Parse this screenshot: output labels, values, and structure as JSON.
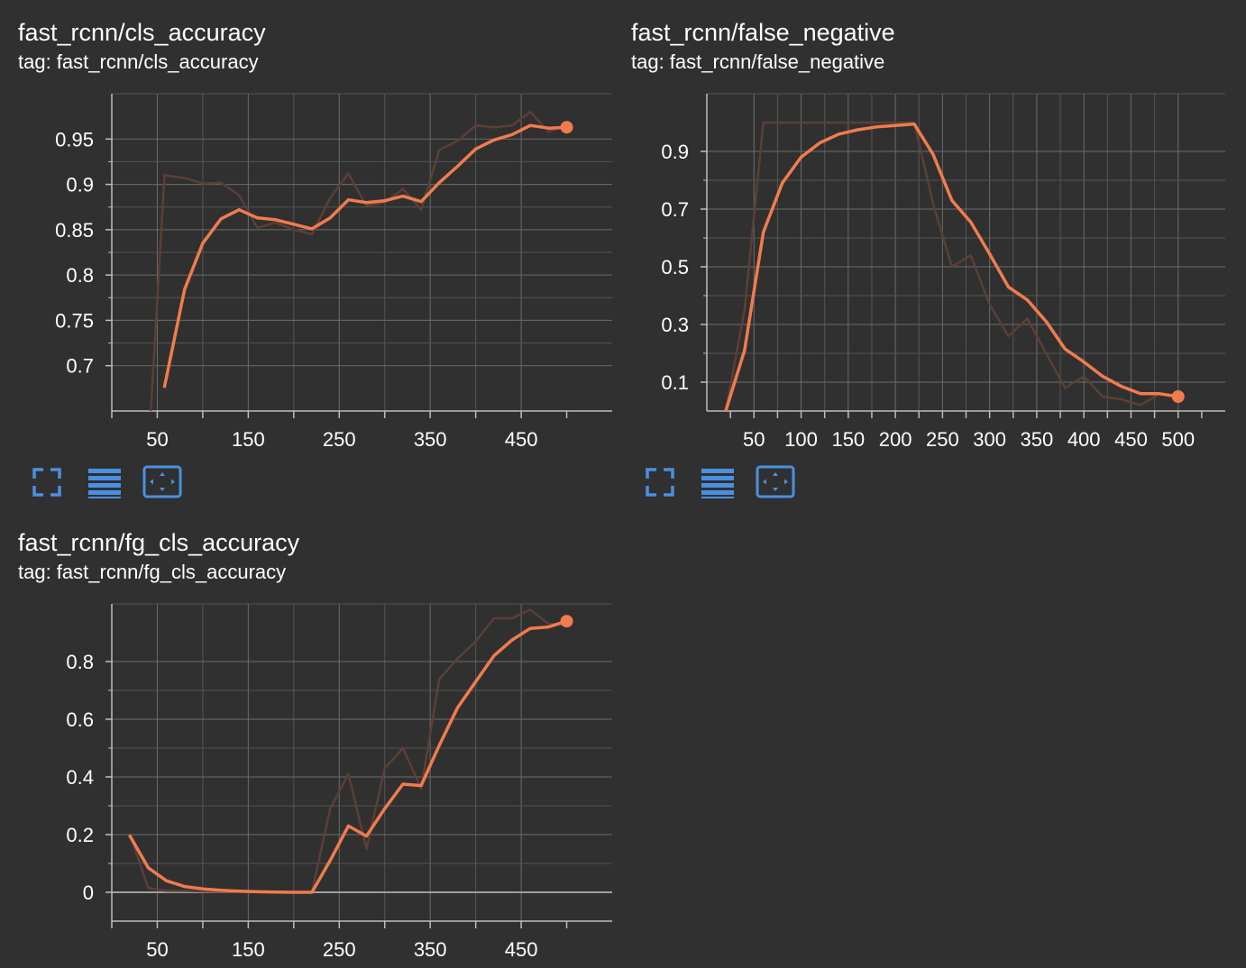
{
  "theme": {
    "background": "#303030",
    "accent": "#f07c4e",
    "raw_series_color": "#5b3f37",
    "grid_color": "#6b6b6b",
    "icon_color": "#4a90e2"
  },
  "toolbar_icons": [
    "fullscreen-icon",
    "data-table-icon",
    "fit-domain-icon"
  ],
  "cards": [
    {
      "title": "fast_rcnn/cls_accuracy",
      "tag": "tag: fast_rcnn/cls_accuracy",
      "show_toolbar": true
    },
    {
      "title": "fast_rcnn/false_negative",
      "tag": "tag: fast_rcnn/false_negative",
      "show_toolbar": true
    },
    {
      "title": "fast_rcnn/fg_cls_accuracy",
      "tag": "tag: fast_rcnn/fg_cls_accuracy",
      "show_toolbar": false
    }
  ],
  "chart_data": [
    {
      "type": "line",
      "title": "fast_rcnn/cls_accuracy",
      "xlim": [
        0,
        550
      ],
      "ylim": [
        0.65,
        1.0
      ],
      "xticks": [
        50,
        150,
        250,
        350,
        450
      ],
      "xtick_labels": [
        "50",
        "150",
        "250",
        "350",
        "450"
      ],
      "yticks": [
        0.7,
        0.75,
        0.8,
        0.85,
        0.9,
        0.95
      ],
      "ytick_labels": [
        "0.7",
        "0.75",
        "0.8",
        "0.85",
        "0.9",
        "0.95"
      ],
      "grid": true,
      "series": [
        {
          "role": "raw",
          "x": [
            40,
            58,
            80,
            100,
            120,
            140,
            160,
            180,
            200,
            220,
            240,
            260,
            280,
            300,
            320,
            340,
            360,
            380,
            400,
            420,
            440,
            460,
            480,
            500
          ],
          "y": [
            0.6,
            0.91,
            0.907,
            0.901,
            0.902,
            0.888,
            0.852,
            0.858,
            0.85,
            0.845,
            0.885,
            0.912,
            0.876,
            0.88,
            0.895,
            0.872,
            0.938,
            0.948,
            0.965,
            0.963,
            0.965,
            0.98,
            0.958,
            0.965
          ]
        },
        {
          "role": "smoothed",
          "x": [
            58,
            80,
            100,
            120,
            140,
            160,
            180,
            200,
            220,
            240,
            260,
            280,
            300,
            320,
            340,
            360,
            380,
            400,
            420,
            440,
            460,
            480,
            500
          ],
          "y": [
            0.677,
            0.784,
            0.835,
            0.862,
            0.872,
            0.863,
            0.861,
            0.856,
            0.851,
            0.863,
            0.883,
            0.88,
            0.882,
            0.887,
            0.881,
            0.902,
            0.92,
            0.939,
            0.949,
            0.955,
            0.965,
            0.962,
            0.963
          ]
        }
      ]
    },
    {
      "type": "line",
      "title": "fast_rcnn/false_negative",
      "xlim": [
        0,
        550
      ],
      "ylim": [
        0.0,
        1.1
      ],
      "xticks": [
        50,
        100,
        150,
        200,
        250,
        300,
        350,
        400,
        450,
        500
      ],
      "xtick_labels": [
        "50",
        "100",
        "150",
        "200",
        "250",
        "300",
        "350",
        "400",
        "450",
        "500"
      ],
      "yticks": [
        0.1,
        0.3,
        0.5,
        0.7,
        0.9
      ],
      "ytick_labels": [
        "0.1",
        "0.3",
        "0.5",
        "0.7",
        "0.9"
      ],
      "grid": true,
      "series": [
        {
          "role": "raw",
          "x": [
            20,
            40,
            60,
            80,
            100,
            120,
            140,
            160,
            180,
            200,
            220,
            240,
            260,
            280,
            300,
            320,
            340,
            360,
            380,
            400,
            420,
            440,
            460,
            480,
            500
          ],
          "y": [
            0.0,
            0.35,
            1.0,
            1.0,
            1.0,
            1.0,
            1.0,
            1.0,
            1.0,
            1.0,
            1.0,
            0.72,
            0.5,
            0.54,
            0.37,
            0.26,
            0.32,
            0.2,
            0.08,
            0.12,
            0.05,
            0.04,
            0.02,
            0.06,
            0.05
          ]
        },
        {
          "role": "smoothed",
          "x": [
            20,
            40,
            60,
            80,
            100,
            120,
            140,
            160,
            180,
            200,
            220,
            240,
            260,
            280,
            300,
            320,
            340,
            360,
            380,
            400,
            420,
            440,
            460,
            480,
            500
          ],
          "y": [
            0.0,
            0.21,
            0.62,
            0.79,
            0.88,
            0.93,
            0.96,
            0.975,
            0.985,
            0.99,
            0.995,
            0.89,
            0.73,
            0.655,
            0.545,
            0.43,
            0.385,
            0.31,
            0.215,
            0.17,
            0.12,
            0.085,
            0.06,
            0.06,
            0.05
          ]
        }
      ]
    },
    {
      "type": "line",
      "title": "fast_rcnn/fg_cls_accuracy",
      "xlim": [
        0,
        550
      ],
      "ylim": [
        -0.1,
        1.0
      ],
      "xticks": [
        50,
        150,
        250,
        350,
        450
      ],
      "xtick_labels": [
        "50",
        "150",
        "250",
        "350",
        "450"
      ],
      "yticks": [
        0,
        0.2,
        0.4,
        0.6,
        0.8
      ],
      "ytick_labels": [
        "0",
        "0.2",
        "0.4",
        "0.6",
        "0.8"
      ],
      "grid": true,
      "series": [
        {
          "role": "raw",
          "x": [
            20,
            40,
            60,
            80,
            100,
            120,
            140,
            160,
            180,
            200,
            220,
            240,
            260,
            270,
            280,
            300,
            320,
            340,
            360,
            380,
            400,
            420,
            440,
            460,
            480,
            500
          ],
          "y": [
            0.2,
            0.015,
            0.005,
            0.005,
            0.003,
            0.002,
            0.001,
            0.001,
            0.0,
            0.0,
            0.0,
            0.29,
            0.41,
            0.28,
            0.15,
            0.43,
            0.5,
            0.36,
            0.74,
            0.81,
            0.87,
            0.95,
            0.95,
            0.98,
            0.93,
            0.93
          ]
        },
        {
          "role": "smoothed",
          "x": [
            20,
            40,
            60,
            80,
            100,
            120,
            140,
            160,
            180,
            200,
            220,
            240,
            260,
            280,
            300,
            320,
            340,
            360,
            380,
            400,
            420,
            440,
            460,
            480,
            500
          ],
          "y": [
            0.195,
            0.085,
            0.04,
            0.02,
            0.012,
            0.007,
            0.004,
            0.002,
            0.001,
            0.0,
            0.0,
            0.11,
            0.23,
            0.195,
            0.29,
            0.375,
            0.37,
            0.51,
            0.64,
            0.73,
            0.82,
            0.875,
            0.915,
            0.92,
            0.94
          ]
        }
      ]
    }
  ]
}
